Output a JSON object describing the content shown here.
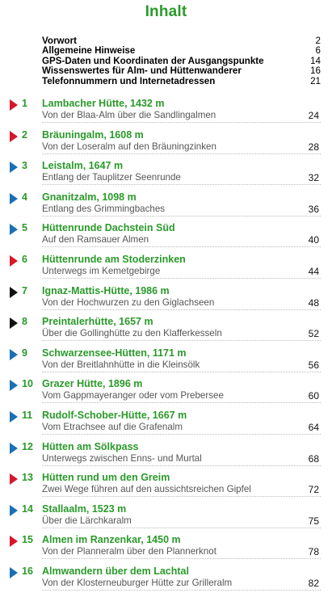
{
  "title": "Inhalt",
  "front_matter": [
    {
      "label": "Vorwort",
      "page": "2"
    },
    {
      "label": "Allgemeine Hinweise",
      "page": "6"
    },
    {
      "label": "GPS-Daten und Koordinaten der Ausgangspunkte",
      "page": "14"
    },
    {
      "label": "Wissenswertes für Alm- und Hüttenwanderer",
      "page": "16"
    },
    {
      "label": "Telefonnummern und Internetadressen",
      "page": "21"
    }
  ],
  "colors": {
    "red": "#d9152b",
    "blue": "#1a6fb5",
    "black": "#111111",
    "green": "#2a9a2a"
  },
  "chapters": [
    {
      "num": "1",
      "title": "Lambacher Hütte, 1432 m",
      "subtitle": "Von der Blaa-Alm über die Sandlingalmen",
      "page": "24",
      "marker": "red"
    },
    {
      "num": "2",
      "title": "Bräuningalm, 1608 m",
      "subtitle": "Von der Loseralm auf den Bräuningzinken",
      "page": "28",
      "marker": "red"
    },
    {
      "num": "3",
      "title": "Leistalm, 1647 m",
      "subtitle": "Entlang der Tauplitzer Seenrunde",
      "page": "32",
      "marker": "blue"
    },
    {
      "num": "4",
      "title": "Gnanitzalm, 1098 m",
      "subtitle": "Entlang des Grimmingbaches",
      "page": "36",
      "marker": "blue"
    },
    {
      "num": "5",
      "title": "Hüttenrunde Dachstein Süd",
      "subtitle": "Auf den Ramsauer Almen",
      "page": "40",
      "marker": "blue"
    },
    {
      "num": "6",
      "title": "Hüttenrunde am Stoderzinken",
      "subtitle": "Unterwegs im Kemetgebirge",
      "page": "44",
      "marker": "red"
    },
    {
      "num": "7",
      "title": "Ignaz-Mattis-Hütte, 1986 m",
      "subtitle": "Von der Hochwurzen zu den Giglachseen",
      "page": "48",
      "marker": "black"
    },
    {
      "num": "8",
      "title": "Preintalerhütte, 1657 m",
      "subtitle": "Über die Gollinghütte zu den Klafferkesseln",
      "page": "52",
      "marker": "black"
    },
    {
      "num": "9",
      "title": "Schwarzensee-Hütten, 1171 m",
      "subtitle": "Von der Breitlahnhütte in die Kleinsölk",
      "page": "56",
      "marker": "blue"
    },
    {
      "num": "10",
      "title": "Grazer Hütte, 1896 m",
      "subtitle": "Vom Gappmayeranger oder vom Prebersee",
      "page": "60",
      "marker": "blue"
    },
    {
      "num": "11",
      "title": "Rudolf-Schober-Hütte, 1667 m",
      "subtitle": "Vom Etrachsee auf die Grafenalm",
      "page": "64",
      "marker": "blue"
    },
    {
      "num": "12",
      "title": "Hütten am Sölkpass",
      "subtitle": "Unterwegs zwischen Enns- und Murtal",
      "page": "68",
      "marker": "blue"
    },
    {
      "num": "13",
      "title": "Hütten rund um den Greim",
      "subtitle": "Zwei Wege führen auf den aussichtsreichen Gipfel",
      "page": "72",
      "marker": "red"
    },
    {
      "num": "14",
      "title": "Stallaalm, 1523 m",
      "subtitle": "Über die Lärchkaralm",
      "page": "75",
      "marker": "blue"
    },
    {
      "num": "15",
      "title": "Almen im Ranzenkar, 1450 m",
      "subtitle": "Von der Planneralm über den Plannerknot",
      "page": "78",
      "marker": "red"
    },
    {
      "num": "16",
      "title": "Almwandern über dem Lachtal",
      "subtitle": "Von der Klosterneuburger Hütte zur Grilleralm",
      "page": "82",
      "marker": "blue"
    }
  ]
}
